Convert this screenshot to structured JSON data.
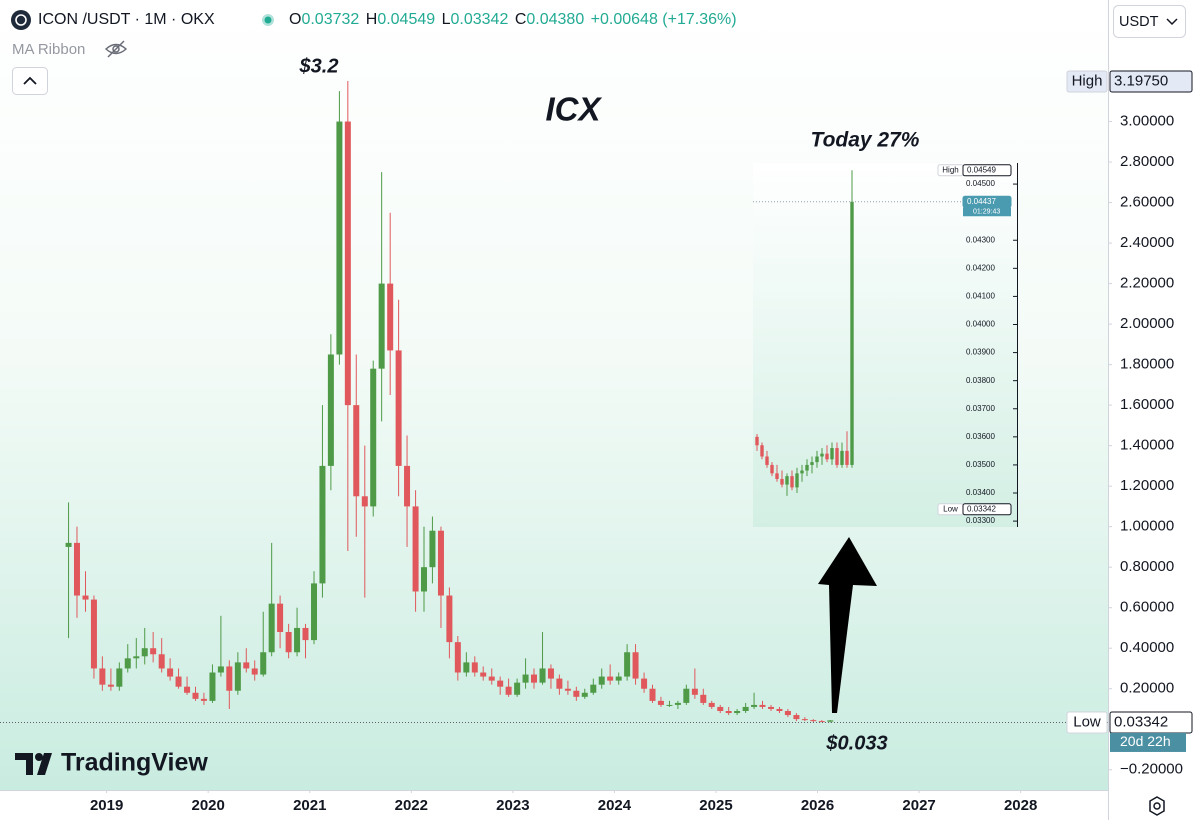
{
  "header": {
    "symbol": "ICON /USDT · 1M · OKX",
    "o_label": "O",
    "open": "0.03732",
    "h_label": "H",
    "high": "0.04549",
    "l_label": "L",
    "low": "0.03342",
    "c_label": "C",
    "close": "0.04380",
    "change": "+0.00648 (+17.36%)",
    "indicator": "MA Ribbon",
    "currency": "USDT",
    "brand": "TradingView"
  },
  "chart_data": [
    {
      "type": "candlestick",
      "annotations": [
        "$3.2",
        "ICX",
        "$0.033"
      ],
      "up_color": "#4e9a47",
      "down_color": "#e0585b",
      "xlim": [
        2017.95,
        2028.86
      ],
      "xticks": [
        2019,
        2020,
        2021,
        2022,
        2023,
        2024,
        2025,
        2026,
        2027,
        2028
      ],
      "ylim": [
        -0.3,
        3.6
      ],
      "yticks": [
        {
          "value": -0.2,
          "label": "−0.20000"
        },
        {
          "value": 0.2,
          "label": "0.20000"
        },
        {
          "value": 0.4,
          "label": "0.40000"
        },
        {
          "value": 0.6,
          "label": "0.60000"
        },
        {
          "value": 0.8,
          "label": "0.80000"
        },
        {
          "value": 1.0,
          "label": "1.00000"
        },
        {
          "value": 1.2,
          "label": "1.20000"
        },
        {
          "value": 1.4,
          "label": "1.40000"
        },
        {
          "value": 1.6,
          "label": "1.60000"
        },
        {
          "value": 1.8,
          "label": "1.80000"
        },
        {
          "value": 2.0,
          "label": "2.00000"
        },
        {
          "value": 2.2,
          "label": "2.20000"
        },
        {
          "value": 2.4,
          "label": "2.40000"
        },
        {
          "value": 2.6,
          "label": "2.60000"
        },
        {
          "value": 2.8,
          "label": "2.80000"
        },
        {
          "value": 3.0,
          "label": "3.00000"
        }
      ],
      "markers": [
        {
          "label": "High",
          "value": 3.1975,
          "text": "3.19750",
          "color": "#e3e9f5"
        },
        {
          "label": "Low",
          "value": 0.03342,
          "text": "0.03342",
          "color": "#ffffff",
          "line": true,
          "countdown": "20d 22h",
          "countdown_color": "#4b8fa3"
        }
      ],
      "x": [
        2018.625,
        2018.708,
        2018.792,
        2018.875,
        2018.958,
        2019.042,
        2019.125,
        2019.208,
        2019.292,
        2019.375,
        2019.458,
        2019.542,
        2019.625,
        2019.708,
        2019.792,
        2019.875,
        2019.958,
        2020.042,
        2020.125,
        2020.208,
        2020.292,
        2020.375,
        2020.458,
        2020.542,
        2020.625,
        2020.708,
        2020.792,
        2020.875,
        2020.958,
        2021.042,
        2021.125,
        2021.208,
        2021.292,
        2021.375,
        2021.458,
        2021.542,
        2021.625,
        2021.708,
        2021.792,
        2021.875,
        2021.958,
        2022.042,
        2022.125,
        2022.208,
        2022.292,
        2022.375,
        2022.458,
        2022.542,
        2022.625,
        2022.708,
        2022.792,
        2022.875,
        2022.958,
        2023.042,
        2023.125,
        2023.208,
        2023.292,
        2023.375,
        2023.458,
        2023.542,
        2023.625,
        2023.708,
        2023.792,
        2023.875,
        2023.958,
        2024.042,
        2024.125,
        2024.208,
        2024.292,
        2024.375,
        2024.458,
        2024.542,
        2024.625,
        2024.708,
        2024.792,
        2024.875,
        2024.958,
        2025.042,
        2025.125,
        2025.208,
        2025.292,
        2025.375,
        2025.458,
        2025.542,
        2025.625,
        2025.708,
        2025.792,
        2025.875,
        2025.958,
        2026.042,
        2026.125
      ],
      "ohlc": [
        [
          0.9,
          1.12,
          0.45,
          0.92
        ],
        [
          0.92,
          1.0,
          0.55,
          0.66
        ],
        [
          0.66,
          0.78,
          0.58,
          0.64
        ],
        [
          0.64,
          0.66,
          0.25,
          0.3
        ],
        [
          0.3,
          0.36,
          0.19,
          0.22
        ],
        [
          0.22,
          0.3,
          0.19,
          0.21
        ],
        [
          0.21,
          0.33,
          0.19,
          0.3
        ],
        [
          0.3,
          0.42,
          0.28,
          0.35
        ],
        [
          0.35,
          0.45,
          0.3,
          0.36
        ],
        [
          0.36,
          0.5,
          0.32,
          0.4
        ],
        [
          0.4,
          0.48,
          0.33,
          0.37
        ],
        [
          0.37,
          0.45,
          0.28,
          0.3
        ],
        [
          0.3,
          0.35,
          0.24,
          0.26
        ],
        [
          0.26,
          0.3,
          0.2,
          0.21
        ],
        [
          0.21,
          0.26,
          0.17,
          0.18
        ],
        [
          0.18,
          0.21,
          0.14,
          0.15
        ],
        [
          0.15,
          0.18,
          0.12,
          0.14
        ],
        [
          0.14,
          0.32,
          0.13,
          0.28
        ],
        [
          0.28,
          0.56,
          0.26,
          0.31
        ],
        [
          0.31,
          0.34,
          0.1,
          0.19
        ],
        [
          0.19,
          0.38,
          0.17,
          0.33
        ],
        [
          0.33,
          0.4,
          0.28,
          0.3
        ],
        [
          0.3,
          0.34,
          0.24,
          0.27
        ],
        [
          0.27,
          0.58,
          0.26,
          0.38
        ],
        [
          0.38,
          0.92,
          0.36,
          0.62
        ],
        [
          0.62,
          0.66,
          0.4,
          0.48
        ],
        [
          0.48,
          0.52,
          0.35,
          0.38
        ],
        [
          0.38,
          0.6,
          0.36,
          0.5
        ],
        [
          0.5,
          0.52,
          0.35,
          0.44
        ],
        [
          0.44,
          0.78,
          0.42,
          0.72
        ],
        [
          0.72,
          1.6,
          0.65,
          1.3
        ],
        [
          1.3,
          1.95,
          1.18,
          1.85
        ],
        [
          1.85,
          3.15,
          1.8,
          3.0
        ],
        [
          3.0,
          3.2,
          0.88,
          1.6
        ],
        [
          1.6,
          1.85,
          0.95,
          1.15
        ],
        [
          1.15,
          1.4,
          0.65,
          1.1
        ],
        [
          1.1,
          1.82,
          1.05,
          1.78
        ],
        [
          1.78,
          2.75,
          1.52,
          2.2
        ],
        [
          2.2,
          2.55,
          1.65,
          1.87
        ],
        [
          1.87,
          2.12,
          1.15,
          1.3
        ],
        [
          1.3,
          1.45,
          0.9,
          1.1
        ],
        [
          1.1,
          1.18,
          0.58,
          0.68
        ],
        [
          0.68,
          1.0,
          0.58,
          0.8
        ],
        [
          0.8,
          1.05,
          0.72,
          0.98
        ],
        [
          0.98,
          1.0,
          0.5,
          0.66
        ],
        [
          0.66,
          0.7,
          0.35,
          0.43
        ],
        [
          0.43,
          0.46,
          0.24,
          0.28
        ],
        [
          0.28,
          0.38,
          0.26,
          0.33
        ],
        [
          0.33,
          0.36,
          0.26,
          0.28
        ],
        [
          0.28,
          0.31,
          0.24,
          0.26
        ],
        [
          0.26,
          0.3,
          0.22,
          0.24
        ],
        [
          0.24,
          0.26,
          0.17,
          0.21
        ],
        [
          0.21,
          0.25,
          0.16,
          0.17
        ],
        [
          0.17,
          0.25,
          0.16,
          0.23
        ],
        [
          0.23,
          0.35,
          0.2,
          0.27
        ],
        [
          0.27,
          0.3,
          0.2,
          0.23
        ],
        [
          0.23,
          0.48,
          0.22,
          0.3
        ],
        [
          0.3,
          0.32,
          0.2,
          0.25
        ],
        [
          0.25,
          0.27,
          0.17,
          0.2
        ],
        [
          0.2,
          0.24,
          0.17,
          0.19
        ],
        [
          0.19,
          0.21,
          0.14,
          0.16
        ],
        [
          0.16,
          0.2,
          0.15,
          0.18
        ],
        [
          0.18,
          0.25,
          0.17,
          0.22
        ],
        [
          0.22,
          0.3,
          0.2,
          0.26
        ],
        [
          0.26,
          0.32,
          0.22,
          0.24
        ],
        [
          0.24,
          0.28,
          0.22,
          0.26
        ],
        [
          0.26,
          0.42,
          0.24,
          0.38
        ],
        [
          0.38,
          0.42,
          0.22,
          0.25
        ],
        [
          0.25,
          0.28,
          0.18,
          0.2
        ],
        [
          0.2,
          0.22,
          0.13,
          0.14
        ],
        [
          0.14,
          0.16,
          0.11,
          0.12
        ],
        [
          0.12,
          0.14,
          0.11,
          0.12
        ],
        [
          0.12,
          0.14,
          0.1,
          0.13
        ],
        [
          0.13,
          0.22,
          0.12,
          0.2
        ],
        [
          0.2,
          0.3,
          0.15,
          0.17
        ],
        [
          0.17,
          0.2,
          0.12,
          0.13
        ],
        [
          0.13,
          0.14,
          0.1,
          0.11
        ],
        [
          0.11,
          0.12,
          0.08,
          0.09
        ],
        [
          0.09,
          0.11,
          0.07,
          0.08
        ],
        [
          0.08,
          0.1,
          0.07,
          0.09
        ],
        [
          0.09,
          0.13,
          0.08,
          0.11
        ],
        [
          0.11,
          0.18,
          0.1,
          0.12
        ],
        [
          0.12,
          0.14,
          0.1,
          0.11
        ],
        [
          0.11,
          0.12,
          0.09,
          0.1
        ],
        [
          0.1,
          0.11,
          0.08,
          0.09
        ],
        [
          0.09,
          0.1,
          0.06,
          0.07
        ],
        [
          0.07,
          0.08,
          0.04,
          0.05
        ],
        [
          0.05,
          0.06,
          0.04,
          0.045
        ],
        [
          0.045,
          0.05,
          0.035,
          0.04
        ],
        [
          0.04,
          0.045,
          0.036,
          0.037
        ],
        [
          0.03732,
          0.04549,
          0.03342,
          0.0438
        ]
      ]
    },
    {
      "type": "candlestick",
      "title": "Today 27%",
      "up_color": "#4e9a47",
      "down_color": "#e0585b",
      "ylim": [
        0.03279,
        0.04575
      ],
      "yticks": [
        {
          "value": 0.033,
          "label": "0.03300"
        },
        {
          "value": 0.034,
          "label": "0.03400"
        },
        {
          "value": 0.035,
          "label": "0.03500"
        },
        {
          "value": 0.036,
          "label": "0.03600"
        },
        {
          "value": 0.037,
          "label": "0.03700"
        },
        {
          "value": 0.038,
          "label": "0.03800"
        },
        {
          "value": 0.039,
          "label": "0.03900"
        },
        {
          "value": 0.04,
          "label": "0.04000"
        },
        {
          "value": 0.041,
          "label": "0.04100"
        },
        {
          "value": 0.042,
          "label": "0.04200"
        },
        {
          "value": 0.043,
          "label": "0.04300"
        },
        {
          "value": 0.045,
          "label": "0.04500"
        }
      ],
      "markers": [
        {
          "label": "High",
          "value": 0.04549,
          "text": "0.04549",
          "color": "#ffffff"
        },
        {
          "label": "Low",
          "value": 0.03342,
          "text": "0.03342",
          "color": "#ffffff"
        },
        {
          "value": 0.04437,
          "text": "0.04437",
          "color": "#4b9bb0",
          "line": true,
          "countdown": "01:29:43",
          "countdown_color": "#4b9bb0"
        }
      ],
      "categories": [
        null,
        null,
        null,
        null,
        null,
        null,
        null,
        null,
        null,
        null,
        null,
        null,
        null,
        null,
        null,
        null,
        null,
        null,
        null,
        null
      ],
      "ohlc": [
        [
          0.036,
          0.0361,
          0.0355,
          0.0357
        ],
        [
          0.0357,
          0.0358,
          0.0352,
          0.0353
        ],
        [
          0.0353,
          0.0355,
          0.0349,
          0.035
        ],
        [
          0.035,
          0.0351,
          0.0346,
          0.0347
        ],
        [
          0.0347,
          0.035,
          0.0344,
          0.0345
        ],
        [
          0.0345,
          0.0348,
          0.0342,
          0.0343
        ],
        [
          0.0343,
          0.0347,
          0.0339,
          0.0346
        ],
        [
          0.0346,
          0.0348,
          0.0341,
          0.0342
        ],
        [
          0.0342,
          0.0349,
          0.034,
          0.0347
        ],
        [
          0.0347,
          0.035,
          0.0344,
          0.0348
        ],
        [
          0.0348,
          0.0352,
          0.0346,
          0.035
        ],
        [
          0.035,
          0.0353,
          0.0347,
          0.0351
        ],
        [
          0.0351,
          0.0355,
          0.0349,
          0.0353
        ],
        [
          0.0353,
          0.0356,
          0.035,
          0.0354
        ],
        [
          0.0354,
          0.0357,
          0.0351,
          0.0352
        ],
        [
          0.0352,
          0.0358,
          0.035,
          0.0356
        ],
        [
          0.0356,
          0.0358,
          0.0349,
          0.035
        ],
        [
          0.035,
          0.0358,
          0.0349,
          0.0355
        ],
        [
          0.0355,
          0.0362,
          0.0349,
          0.035
        ],
        [
          0.035,
          0.04549,
          0.0349,
          0.04437
        ]
      ]
    }
  ]
}
